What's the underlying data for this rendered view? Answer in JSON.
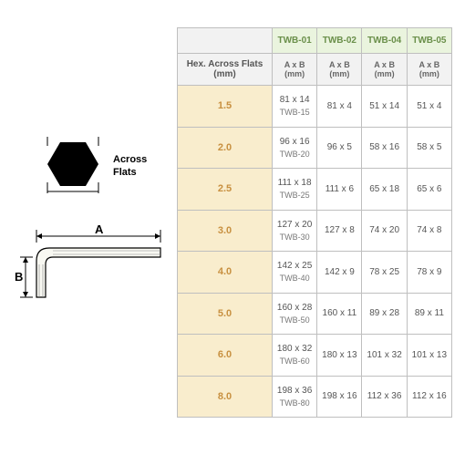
{
  "diagram": {
    "hex_label_line1": "Across",
    "hex_label_line2": "Flats",
    "dim_a": "A",
    "dim_b": "B",
    "hex_fill": "#000000",
    "line_color": "#000000",
    "tool_fill": "#f5f5f0"
  },
  "table": {
    "corner": "",
    "row_header_label": "Hex. Across Flats (mm)",
    "sub_header": "A x B (mm)",
    "columns": [
      "TWB-01",
      "TWB-02",
      "TWB-04",
      "TWB-05"
    ],
    "sizes": [
      "1.5",
      "2.0",
      "2.5",
      "3.0",
      "4.0",
      "5.0",
      "6.0",
      "8.0"
    ],
    "rows": [
      [
        {
          "v": "81 x 14",
          "s": "TWB-15"
        },
        {
          "v": "81 x 4"
        },
        {
          "v": "51 x 14"
        },
        {
          "v": "51 x 4"
        }
      ],
      [
        {
          "v": "96 x 16",
          "s": "TWB-20"
        },
        {
          "v": "96 x 5"
        },
        {
          "v": "58 x 16"
        },
        {
          "v": "58 x 5"
        }
      ],
      [
        {
          "v": "111 x 18",
          "s": "TWB-25"
        },
        {
          "v": "111 x 6"
        },
        {
          "v": "65 x 18"
        },
        {
          "v": "65 x 6"
        }
      ],
      [
        {
          "v": "127 x 20",
          "s": "TWB-30"
        },
        {
          "v": "127 x 8"
        },
        {
          "v": "74 x 20"
        },
        {
          "v": "74 x 8"
        }
      ],
      [
        {
          "v": "142 x 25",
          "s": "TWB-40"
        },
        {
          "v": "142 x 9"
        },
        {
          "v": "78 x 25"
        },
        {
          "v": "78 x 9"
        }
      ],
      [
        {
          "v": "160 x 28",
          "s": "TWB-50"
        },
        {
          "v": "160 x 11"
        },
        {
          "v": "89 x 28"
        },
        {
          "v": "89 x 11"
        }
      ],
      [
        {
          "v": "180 x 32",
          "s": "TWB-60"
        },
        {
          "v": "180 x 13"
        },
        {
          "v": "101 x 32"
        },
        {
          "v": "101 x 13"
        }
      ],
      [
        {
          "v": "198 x 36",
          "s": "TWB-80"
        },
        {
          "v": "198 x 16"
        },
        {
          "v": "112 x 36"
        },
        {
          "v": "112 x 16"
        }
      ]
    ],
    "colors": {
      "border": "#bfbfbf",
      "col_header_bg": "#eaf4de",
      "col_header_text": "#6a8f4a",
      "row_header_bg": "#f2f2f2",
      "size_cell_bg": "#f9edcd",
      "size_cell_text": "#c89040",
      "data_text": "#555555"
    }
  }
}
